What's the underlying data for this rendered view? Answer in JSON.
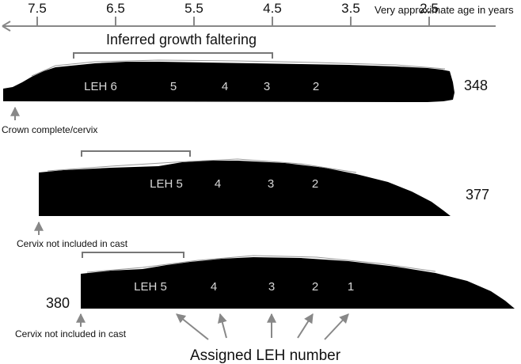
{
  "axis": {
    "ticks": [
      "7.5",
      "6.5",
      "5.5",
      "4.5",
      "3.5",
      "2.5"
    ],
    "label": "Very approximate age in years"
  },
  "growth_label": "Inferred growth faltering",
  "specimens": [
    {
      "id": "348",
      "leh_labels": [
        "LEH 6",
        "5",
        "4",
        "3",
        "2"
      ],
      "caption": "Crown complete/cervix"
    },
    {
      "id": "377",
      "leh_labels": [
        "LEH 5",
        "4",
        "3",
        "2"
      ],
      "caption": "Cervix not included in cast"
    },
    {
      "id": "380",
      "leh_labels": [
        "LEH 5",
        "4",
        "3",
        "2",
        "1"
      ],
      "caption": "Cervix  not included in cast"
    }
  ],
  "bottom_label": "Assigned LEH number",
  "colors": {
    "tooth": "#000000",
    "ink": "#111111",
    "arrow": "#888888",
    "bracket": "#777777",
    "leh_text": "#d8d8d8"
  }
}
